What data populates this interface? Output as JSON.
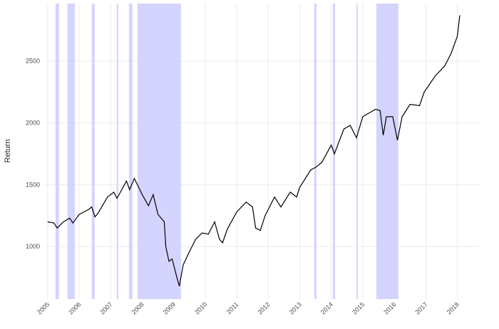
{
  "chart_data": {
    "type": "line",
    "y_label": "Return",
    "x": [
      2005.0,
      2005.2,
      2005.3,
      2005.5,
      2005.7,
      2005.8,
      2006.0,
      2006.3,
      2006.4,
      2006.5,
      2006.6,
      2006.9,
      2007.1,
      2007.2,
      2007.5,
      2007.6,
      2007.75,
      2007.85,
      2008.0,
      2008.2,
      2008.35,
      2008.5,
      2008.7,
      2008.75,
      2008.85,
      2008.95,
      2009.1,
      2009.18,
      2009.3,
      2009.5,
      2009.7,
      2009.9,
      2010.1,
      2010.3,
      2010.45,
      2010.55,
      2010.7,
      2011.0,
      2011.3,
      2011.5,
      2011.6,
      2011.75,
      2011.9,
      2012.2,
      2012.4,
      2012.7,
      2012.9,
      2013.0,
      2013.35,
      2013.5,
      2013.7,
      2014.0,
      2014.1,
      2014.4,
      2014.6,
      2014.8,
      2015.0,
      2015.4,
      2015.55,
      2015.65,
      2015.75,
      2015.95,
      2016.1,
      2016.25,
      2016.5,
      2016.8,
      2016.95,
      2017.3,
      2017.6,
      2017.8,
      2018.0,
      2018.08
    ],
    "series": [
      {
        "name": null,
        "color": "#000000",
        "values": [
          1200,
          1190,
          1150,
          1200,
          1230,
          1190,
          1260,
          1300,
          1320,
          1240,
          1270,
          1400,
          1440,
          1390,
          1530,
          1460,
          1550,
          1500,
          1420,
          1330,
          1420,
          1260,
          1200,
          1000,
          880,
          900,
          750,
          680,
          850,
          960,
          1060,
          1110,
          1100,
          1200,
          1060,
          1030,
          1140,
          1280,
          1360,
          1320,
          1150,
          1130,
          1250,
          1400,
          1320,
          1440,
          1400,
          1480,
          1620,
          1640,
          1680,
          1820,
          1750,
          1950,
          1980,
          1880,
          2050,
          2110,
          2100,
          1900,
          2050,
          2050,
          1860,
          2050,
          2150,
          2140,
          2250,
          2380,
          2460,
          2560,
          2700,
          2870
        ]
      }
    ],
    "shaded_regions": [
      [
        2005.25,
        2005.36
      ],
      [
        2005.63,
        2005.86
      ],
      [
        2006.4,
        2006.49
      ],
      [
        2007.19,
        2007.24
      ],
      [
        2007.58,
        2007.69
      ],
      [
        2007.85,
        2009.23
      ],
      [
        2013.46,
        2013.53
      ],
      [
        2014.05,
        2014.12
      ],
      [
        2014.8,
        2014.84
      ],
      [
        2015.43,
        2016.13
      ]
    ],
    "shade_color": "#ccccff",
    "xlim": [
      2004.89,
      2018.69
    ],
    "xticks": [
      2005,
      2006,
      2007,
      2008,
      2009,
      2010,
      2011,
      2012,
      2013,
      2014,
      2015,
      2016,
      2017,
      2018
    ],
    "ylim": [
      575,
      2965
    ],
    "yticks": [
      1000,
      1500,
      2000,
      2500
    ],
    "grid": true
  }
}
